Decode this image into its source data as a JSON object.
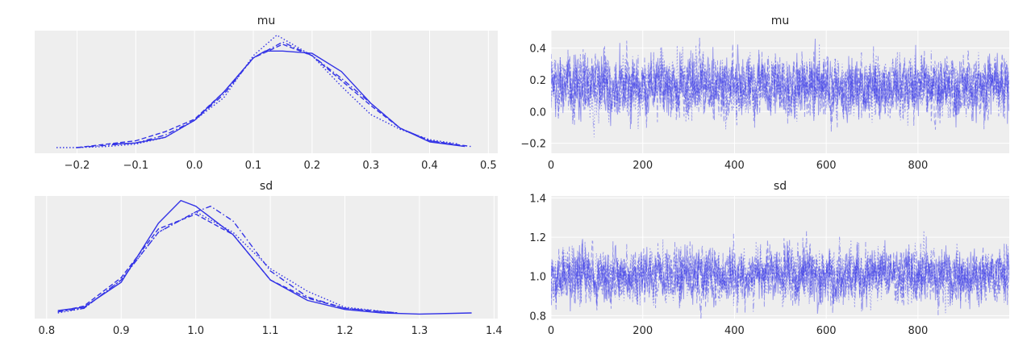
{
  "colors": {
    "line": "#3333e6",
    "background": "#eeeeee",
    "grid": "#ffffff"
  },
  "chart_data": [
    {
      "type": "line",
      "title": "mu",
      "subtype": "kde",
      "xlim": [
        -0.272,
        0.516
      ],
      "ylim": [
        -0.04,
        1.04
      ],
      "y_axis_visible": false,
      "xticks": [
        -0.2,
        -0.1,
        0.0,
        0.1,
        0.2,
        0.3,
        0.4,
        0.5
      ],
      "xtick_labels": [
        "−0.2",
        "−0.1",
        "0.0",
        "0.1",
        "0.2",
        "0.3",
        "0.4",
        "0.5"
      ],
      "grid": true,
      "series": [
        {
          "style": "solid",
          "x": [
            -0.14,
            -0.1,
            -0.05,
            0,
            0.05,
            0.1,
            0.12,
            0.15,
            0.2,
            0.25,
            0.3,
            0.35,
            0.4,
            0.46
          ],
          "y": [
            0.04,
            0.05,
            0.1,
            0.25,
            0.5,
            0.8,
            0.86,
            0.86,
            0.84,
            0.68,
            0.4,
            0.18,
            0.06,
            0.02
          ]
        },
        {
          "style": "dotted",
          "x": [
            -0.235,
            -0.2,
            -0.15,
            -0.1,
            -0.05,
            0,
            0.05,
            0.1,
            0.14,
            0.2,
            0.25,
            0.3,
            0.35,
            0.4,
            0.45
          ],
          "y": [
            0.01,
            0.01,
            0.02,
            0.04,
            0.1,
            0.25,
            0.45,
            0.82,
            1.0,
            0.82,
            0.55,
            0.3,
            0.17,
            0.08,
            0.04
          ]
        },
        {
          "style": "dashed",
          "x": [
            -0.2,
            -0.1,
            -0.05,
            0,
            0.05,
            0.1,
            0.15,
            0.2,
            0.25,
            0.3,
            0.35,
            0.4,
            0.47
          ],
          "y": [
            0.01,
            0.07,
            0.15,
            0.26,
            0.5,
            0.8,
            0.92,
            0.82,
            0.6,
            0.38,
            0.18,
            0.07,
            0.02
          ]
        },
        {
          "style": "dashdot",
          "x": [
            -0.2,
            -0.1,
            -0.05,
            0,
            0.05,
            0.1,
            0.15,
            0.2,
            0.25,
            0.3,
            0.35,
            0.4,
            0.46
          ],
          "y": [
            0.01,
            0.05,
            0.12,
            0.25,
            0.48,
            0.8,
            0.94,
            0.82,
            0.62,
            0.4,
            0.18,
            0.07,
            0.02
          ]
        }
      ]
    },
    {
      "type": "line",
      "title": "mu",
      "subtype": "trace",
      "chains": 4,
      "draws": 1000,
      "center": 0.16,
      "spread": 0.09,
      "xlim": [
        0,
        999
      ],
      "ylim": [
        -0.263,
        0.51
      ],
      "xticks": [
        0,
        200,
        400,
        600,
        800
      ],
      "xtick_labels": [
        "0",
        "200",
        "400",
        "600",
        "800"
      ],
      "yticks": [
        -0.2,
        0.0,
        0.2,
        0.4
      ],
      "ytick_labels": [
        "−0.2",
        "0.0",
        "0.2",
        "0.4"
      ],
      "grid": true
    },
    {
      "type": "line",
      "title": "sd",
      "subtype": "kde",
      "xlim": [
        0.784,
        1.405
      ],
      "ylim": [
        -0.04,
        1.04
      ],
      "y_axis_visible": false,
      "xticks": [
        0.8,
        0.9,
        1.0,
        1.1,
        1.2,
        1.3,
        1.4
      ],
      "xtick_labels": [
        "0.8",
        "0.9",
        "1.0",
        "1.1",
        "1.2",
        "1.3",
        "1.4"
      ],
      "grid": true,
      "series": [
        {
          "style": "solid",
          "x": [
            0.815,
            0.85,
            0.9,
            0.95,
            0.98,
            1.0,
            1.05,
            1.1,
            1.15,
            1.2,
            1.25,
            1.3,
            1.37
          ],
          "y": [
            0.03,
            0.06,
            0.28,
            0.8,
            1.0,
            0.95,
            0.7,
            0.3,
            0.12,
            0.04,
            0.01,
            0.0,
            0.01
          ]
        },
        {
          "style": "dotted",
          "x": [
            0.815,
            0.85,
            0.9,
            0.95,
            1.0,
            1.05,
            1.1,
            1.15,
            1.2,
            1.27
          ],
          "y": [
            0.01,
            0.05,
            0.3,
            0.72,
            0.9,
            0.72,
            0.4,
            0.2,
            0.06,
            0.01
          ]
        },
        {
          "style": "dashed",
          "x": [
            0.815,
            0.85,
            0.9,
            0.95,
            1.0,
            1.05,
            1.1,
            1.15,
            1.2,
            1.27
          ],
          "y": [
            0.02,
            0.07,
            0.32,
            0.75,
            0.88,
            0.7,
            0.3,
            0.14,
            0.05,
            0.01
          ]
        },
        {
          "style": "dashdot",
          "x": [
            0.815,
            0.85,
            0.9,
            0.95,
            1.0,
            1.02,
            1.05,
            1.1,
            1.15,
            1.2,
            1.27
          ],
          "y": [
            0.02,
            0.05,
            0.3,
            0.72,
            0.9,
            0.95,
            0.82,
            0.38,
            0.15,
            0.05,
            0.01
          ]
        }
      ]
    },
    {
      "type": "line",
      "title": "sd",
      "subtype": "trace",
      "chains": 4,
      "draws": 1000,
      "center": 1.01,
      "spread": 0.065,
      "xlim": [
        0,
        999
      ],
      "ylim": [
        0.785,
        1.41
      ],
      "xticks": [
        0,
        200,
        400,
        600,
        800
      ],
      "xtick_labels": [
        "0",
        "200",
        "400",
        "600",
        "800"
      ],
      "yticks": [
        0.8,
        1.0,
        1.2,
        1.4
      ],
      "ytick_labels": [
        "0.8",
        "1.0",
        "1.2",
        "1.4"
      ],
      "grid": true
    }
  ]
}
